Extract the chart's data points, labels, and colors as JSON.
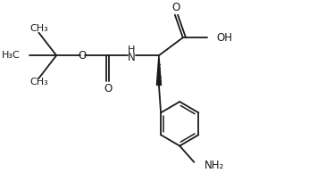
{
  "bg_color": "#ffffff",
  "line_color": "#1a1a1a",
  "line_width": 1.3,
  "font_size": 8.5,
  "figsize": [
    3.74,
    1.94
  ],
  "dpi": 100,
  "xlim": [
    0,
    10
  ],
  "ylim": [
    0,
    5.2
  ]
}
